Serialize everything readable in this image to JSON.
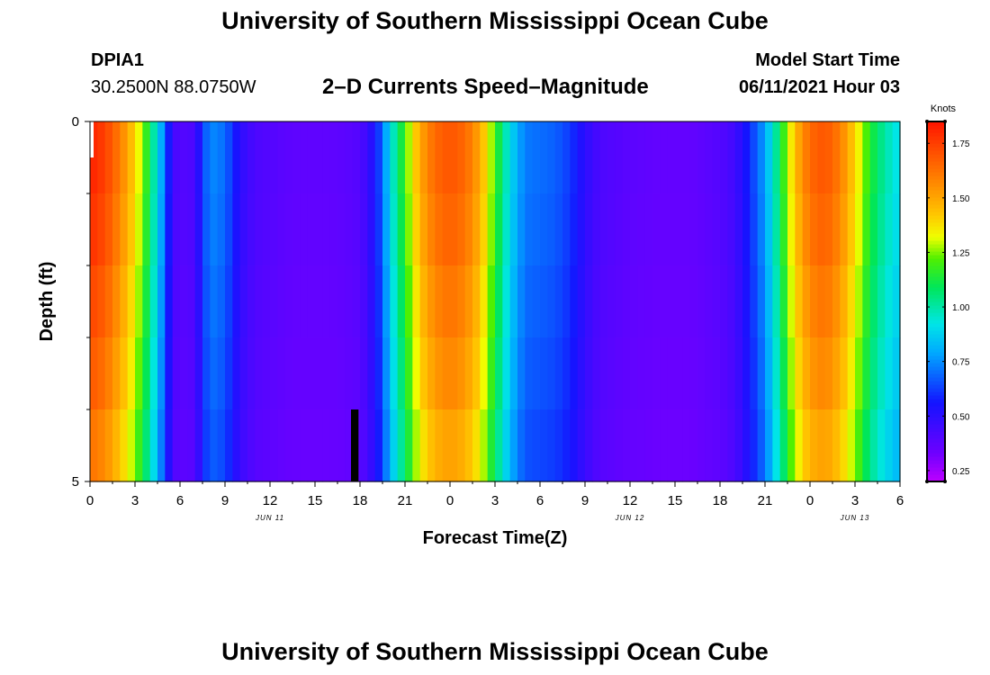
{
  "header": {
    "title": "University of Southern Mississippi Ocean Cube",
    "station": "DPIA1",
    "coords": "30.2500N  88.0750W",
    "plot_title": "2–D Currents Speed–Magnitude",
    "model_label": "Model Start Time",
    "model_time": "06/11/2021 Hour 03",
    "footer_title": "University of Southern Mississippi Ocean Cube"
  },
  "chart_data": {
    "type": "heatmap",
    "title": "2-D Currents Speed-Magnitude",
    "xlabel": "Forecast Time(Z)",
    "ylabel": "Depth (ft)",
    "x_hours": [
      0,
      54
    ],
    "y_range": [
      0,
      5
    ],
    "y_tick_labels": [
      "0",
      "5"
    ],
    "y_minor_ticks": [
      1,
      2,
      3,
      4
    ],
    "x_tick_labels": [
      "0",
      "3",
      "6",
      "9",
      "12",
      "15",
      "18",
      "21",
      "0",
      "3",
      "6",
      "9",
      "12",
      "15",
      "18",
      "21",
      "0",
      "3",
      "6"
    ],
    "date_labels": [
      {
        "text": "JUN 11",
        "hour": 12
      },
      {
        "text": "JUN 12",
        "hour": 36
      },
      {
        "text": "JUN 13",
        "hour": 51
      }
    ],
    "colorbar": {
      "label": "Knots",
      "vmin": 0.2,
      "vmax": 1.85,
      "ticks": [
        0.25,
        0.5,
        0.75,
        1.0,
        1.25,
        1.5,
        1.75
      ],
      "tick_labels": [
        "0.25",
        "0.50",
        "0.75",
        "1.00",
        "1.25",
        "1.50",
        "1.75"
      ]
    },
    "columns_per_hour": 2,
    "speed_profile_hours": [
      0,
      1,
      2,
      3,
      4,
      4.5,
      5,
      5.5,
      6,
      7,
      7.5,
      8,
      9,
      10,
      11,
      12,
      13,
      14,
      15,
      16,
      17,
      18,
      19,
      19.5,
      20,
      21,
      22,
      23,
      24,
      25,
      26,
      27,
      28,
      29,
      30,
      31,
      32,
      33,
      34,
      35,
      36,
      37,
      38,
      39,
      40,
      41,
      42,
      43,
      44,
      45,
      46,
      47,
      48,
      49,
      50,
      51,
      52,
      53,
      54
    ],
    "speed_profile_knots": [
      1.82,
      1.75,
      1.6,
      1.4,
      1.1,
      0.9,
      0.7,
      0.45,
      0.4,
      0.42,
      0.62,
      0.75,
      0.7,
      0.5,
      0.42,
      0.4,
      0.38,
      0.37,
      0.37,
      0.37,
      0.38,
      0.4,
      0.55,
      0.7,
      0.9,
      1.2,
      1.5,
      1.65,
      1.7,
      1.65,
      1.5,
      1.2,
      0.9,
      0.72,
      0.7,
      0.68,
      0.62,
      0.5,
      0.42,
      0.4,
      0.38,
      0.37,
      0.36,
      0.36,
      0.36,
      0.38,
      0.4,
      0.45,
      0.6,
      0.78,
      1.1,
      1.45,
      1.65,
      1.7,
      1.6,
      1.4,
      1.15,
      1.0,
      0.9
    ],
    "depth_layer_factor": [
      1.0,
      0.98,
      0.95,
      0.92,
      0.88
    ],
    "missing_cells": [
      {
        "hour_start": 17.4,
        "hour_end": 17.9,
        "layer": 4
      }
    ]
  }
}
